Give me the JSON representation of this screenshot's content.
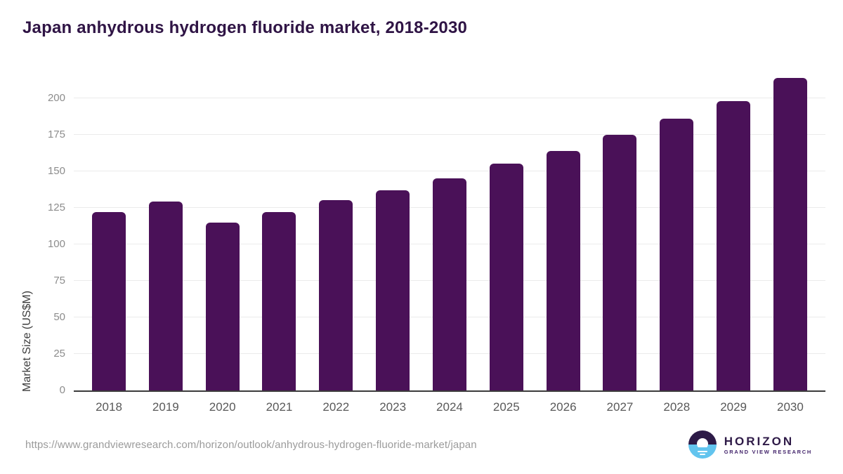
{
  "header": {
    "title": "Japan anhydrous hydrogen fluoride market, 2018-2030"
  },
  "chart_data": {
    "type": "bar",
    "title": "Japan anhydrous hydrogen fluoride market, 2018-2030",
    "categories": [
      "2018",
      "2019",
      "2020",
      "2021",
      "2022",
      "2023",
      "2024",
      "2025",
      "2026",
      "2027",
      "2028",
      "2029",
      "2030"
    ],
    "values": [
      122,
      129,
      115,
      122,
      130,
      137,
      145,
      155,
      164,
      175,
      186,
      198,
      214
    ],
    "xlabel": "",
    "ylabel": "Market Size (US$M)",
    "ylim": [
      0,
      220
    ],
    "yticks": [
      0,
      25,
      50,
      75,
      100,
      125,
      150,
      175,
      200
    ],
    "grid": true,
    "legend": false,
    "bar_color": "#4a1158"
  },
  "footer": {
    "source_url": "https://www.grandviewresearch.com/horizon/outlook/anhydrous-hydrogen-fluoride-market/japan",
    "logo": {
      "name": "HORIZON",
      "subtitle": "GRAND VIEW RESEARCH"
    }
  },
  "colors": {
    "bar": "#4a1158",
    "title_text": "#2f1445",
    "axis_line": "#3b3b3b",
    "gridline": "#ebebeb",
    "y_tick_text": "#8c8c8c",
    "x_tick_text": "#595959",
    "url_text": "#9b9b9b",
    "logo_dark": "#2d1a47",
    "logo_blue": "#62c4ee"
  }
}
